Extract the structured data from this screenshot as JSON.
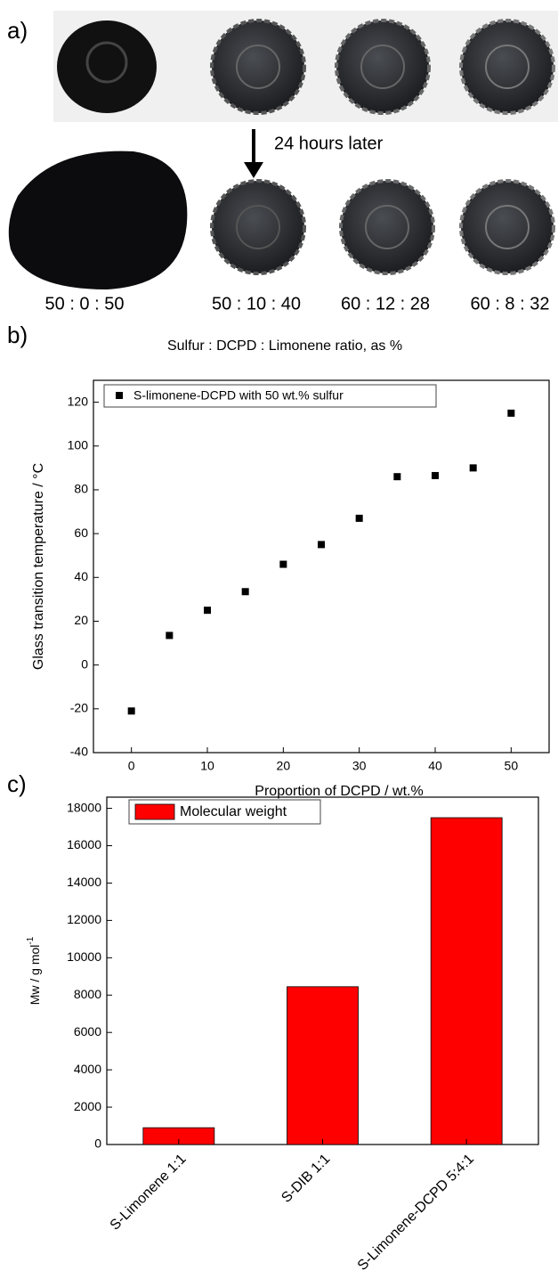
{
  "panel_a": {
    "label": "a)",
    "arrow_text": "24 hours later",
    "ratios": [
      "50 : 0 : 50",
      "50 : 10 : 40",
      "60 : 12 : 28",
      "60 : 8 : 32"
    ],
    "caption": "Sulfur : DCPD : Limonene ratio, as %"
  },
  "chart_data": [
    {
      "type": "scatter",
      "panel_label": "b)",
      "x": [
        0,
        5,
        10,
        15,
        20,
        25,
        30,
        35,
        40,
        45,
        50
      ],
      "series": [
        {
          "name": "S-limonene-DCPD with 50 wt.% sulfur",
          "color": "#000000",
          "values": [
            -21,
            13.5,
            25,
            33.5,
            46,
            55,
            67,
            86,
            86.5,
            90,
            115
          ]
        }
      ],
      "x_label": "Proportion of DCPD / wt.%",
      "y_label": "Glass transition temperature / °C",
      "xlim": [
        -5,
        55
      ],
      "ylim": [
        -40,
        130
      ],
      "xticks": [
        0,
        10,
        20,
        30,
        40,
        50
      ],
      "yticks": [
        -40,
        -20,
        0,
        20,
        40,
        60,
        80,
        100,
        120
      ]
    },
    {
      "type": "bar",
      "panel_label": "c)",
      "categories": [
        "S-Limonene  1:1",
        "S-DIB  1:1",
        "S-Limonene-DCPD  5:4:1"
      ],
      "series": [
        {
          "name": "Molecular weight",
          "color": "#ff0000",
          "values": [
            900,
            8450,
            17500
          ]
        }
      ],
      "y_label": "Mw / g mol",
      "y_label_superscript": "-1",
      "ylim": [
        0,
        18600
      ],
      "yticks": [
        0,
        2000,
        4000,
        6000,
        8000,
        10000,
        12000,
        14000,
        16000,
        18000
      ]
    }
  ]
}
